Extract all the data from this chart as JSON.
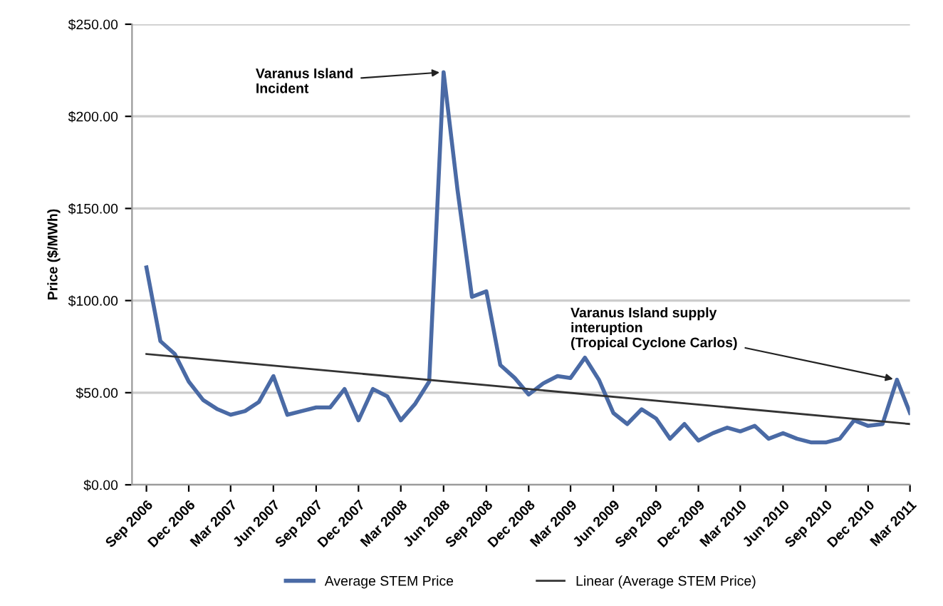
{
  "chart_data": {
    "type": "line",
    "ylabel": "Price ($/MWh)",
    "x": [
      "2006-09",
      "2006-10",
      "2006-11",
      "2006-12",
      "2007-01",
      "2007-02",
      "2007-03",
      "2007-04",
      "2007-05",
      "2007-06",
      "2007-07",
      "2007-08",
      "2007-09",
      "2007-10",
      "2007-11",
      "2007-12",
      "2008-01",
      "2008-02",
      "2008-03",
      "2008-04",
      "2008-05",
      "2008-06",
      "2008-07",
      "2008-08",
      "2008-09",
      "2008-10",
      "2008-11",
      "2008-12",
      "2009-01",
      "2009-02",
      "2009-03",
      "2009-04",
      "2009-05",
      "2009-06",
      "2009-07",
      "2009-08",
      "2009-09",
      "2009-10",
      "2009-11",
      "2009-12",
      "2010-01",
      "2010-02",
      "2010-03",
      "2010-04",
      "2010-05",
      "2010-06",
      "2010-07",
      "2010-08",
      "2010-09",
      "2010-10",
      "2010-11",
      "2010-12",
      "2011-01",
      "2011-02",
      "2011-03"
    ],
    "series": [
      {
        "name": "Average STEM Price",
        "color": "#4a6aa5",
        "values": [
          118,
          78,
          71,
          56,
          46,
          41,
          38,
          40,
          45,
          59,
          38,
          40,
          42,
          42,
          52,
          35,
          52,
          48,
          35,
          44,
          56,
          224,
          160,
          102,
          105,
          65,
          58,
          49,
          55,
          59,
          58,
          69,
          57,
          39,
          33,
          41,
          36,
          25,
          33,
          24,
          28,
          31,
          29,
          32,
          25,
          28,
          25,
          23,
          23,
          25,
          35,
          32,
          33,
          57,
          39
        ]
      },
      {
        "name": "Linear (Average STEM Price)",
        "color": "#333333",
        "x": [
          "2006-09",
          "2011-03"
        ],
        "values": [
          71,
          33
        ]
      }
    ],
    "xlim": [
      "2006-08",
      "2011-03"
    ],
    "xticks": [
      {
        "value": "2006-09",
        "label": "Sep 2006"
      },
      {
        "value": "2006-12",
        "label": "Dec 2006"
      },
      {
        "value": "2007-03",
        "label": "Mar 2007"
      },
      {
        "value": "2007-06",
        "label": "Jun 2007"
      },
      {
        "value": "2007-09",
        "label": "Sep 2007"
      },
      {
        "value": "2007-12",
        "label": "Dec 2007"
      },
      {
        "value": "2008-03",
        "label": "Mar 2008"
      },
      {
        "value": "2008-06",
        "label": "Jun 2008"
      },
      {
        "value": "2008-09",
        "label": "Sep 2008"
      },
      {
        "value": "2008-12",
        "label": "Dec 2008"
      },
      {
        "value": "2009-03",
        "label": "Mar 2009"
      },
      {
        "value": "2009-06",
        "label": "Jun 2009"
      },
      {
        "value": "2009-09",
        "label": "Sep 2009"
      },
      {
        "value": "2009-12",
        "label": "Dec 2009"
      },
      {
        "value": "2010-03",
        "label": "Mar 2010"
      },
      {
        "value": "2010-06",
        "label": "Jun 2010"
      },
      {
        "value": "2010-09",
        "label": "Sep 2010"
      },
      {
        "value": "2010-12",
        "label": "Dec 2010"
      },
      {
        "value": "2011-03",
        "label": "Mar 2011"
      }
    ],
    "ylim": [
      0,
      250
    ],
    "yticks": [
      {
        "value": 0,
        "label": "$0.00"
      },
      {
        "value": 50,
        "label": "$50.00"
      },
      {
        "value": 100,
        "label": "$100.00"
      },
      {
        "value": 150,
        "label": "$150.00"
      },
      {
        "value": 200,
        "label": "$200.00"
      },
      {
        "value": 250,
        "label": "$250.00"
      }
    ],
    "grid": "y",
    "legend": "bottom",
    "marker": "none",
    "line_style": "solid",
    "annotations": [
      {
        "text": "Varanus Island\nIncident",
        "x": "2008-06",
        "y": 224
      },
      {
        "text": "Varanus Island supply\ninteruption\n(Tropical Cyclone Carlos)",
        "x": "2011-02",
        "y": 57
      }
    ]
  }
}
